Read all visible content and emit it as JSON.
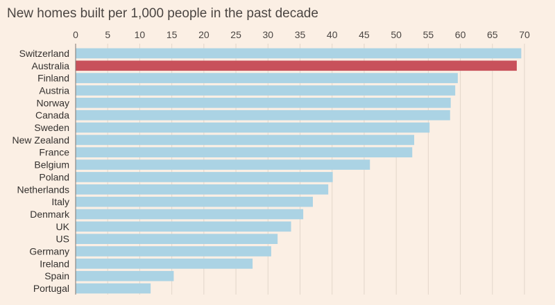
{
  "chart_data": {
    "type": "bar",
    "orientation": "horizontal",
    "title": "New homes built per 1,000 people in the past decade",
    "xlabel": "",
    "ylabel": "",
    "xlim": [
      0,
      70
    ],
    "ticks": [
      0,
      5,
      10,
      15,
      20,
      25,
      30,
      35,
      40,
      45,
      50,
      55,
      60,
      65,
      70
    ],
    "tick_position": "top",
    "grid": true,
    "categories": [
      "Switzerland",
      "Australia",
      "Finland",
      "Austria",
      "Norway",
      "Canada",
      "Sweden",
      "New Zealand",
      "France",
      "Belgium",
      "Poland",
      "Netherlands",
      "Italy",
      "Denmark",
      "UK",
      "US",
      "Germany",
      "Ireland",
      "Spain",
      "Portugal"
    ],
    "values": [
      69.5,
      68.8,
      59.6,
      59.2,
      58.5,
      58.4,
      55.2,
      52.8,
      52.5,
      45.9,
      40.1,
      39.4,
      37.0,
      35.5,
      33.6,
      31.5,
      30.5,
      27.6,
      15.3,
      11.7
    ],
    "highlight": "Australia",
    "colors": {
      "bar": "#abd3e4",
      "highlight": "#c8515b"
    }
  }
}
